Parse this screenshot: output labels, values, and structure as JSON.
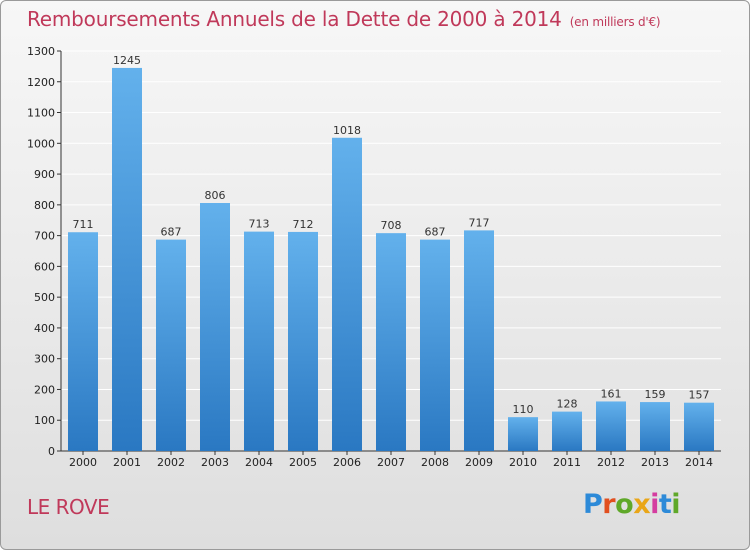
{
  "header": {
    "title": "Remboursements Annuels de la Dette de 2000 à 2014",
    "subtitle": "(en milliers d'€)"
  },
  "footer": {
    "commune": "LE ROVE",
    "logo_letters": [
      "P",
      "r",
      "o",
      "x",
      "i",
      "t",
      "i"
    ]
  },
  "colors": {
    "title": "#c0395a",
    "bar_top": "#63b1ec",
    "bar_bottom": "#2a78c2",
    "grid": "#ffffff"
  },
  "chart_data": {
    "type": "bar",
    "categories": [
      "2000",
      "2001",
      "2002",
      "2003",
      "2004",
      "2005",
      "2006",
      "2007",
      "2008",
      "2009",
      "2010",
      "2011",
      "2012",
      "2013",
      "2014"
    ],
    "values": [
      711,
      1245,
      687,
      806,
      713,
      712,
      1018,
      708,
      687,
      717,
      110,
      128,
      161,
      159,
      157
    ],
    "title": "Remboursements Annuels de la Dette de 2000 à 2014",
    "xlabel": "",
    "ylabel": "",
    "ylim": [
      0,
      1300
    ],
    "yticks": [
      0,
      100,
      200,
      300,
      400,
      500,
      600,
      700,
      800,
      900,
      1000,
      1100,
      1200,
      1300
    ],
    "grid": true,
    "data_labels": true
  }
}
